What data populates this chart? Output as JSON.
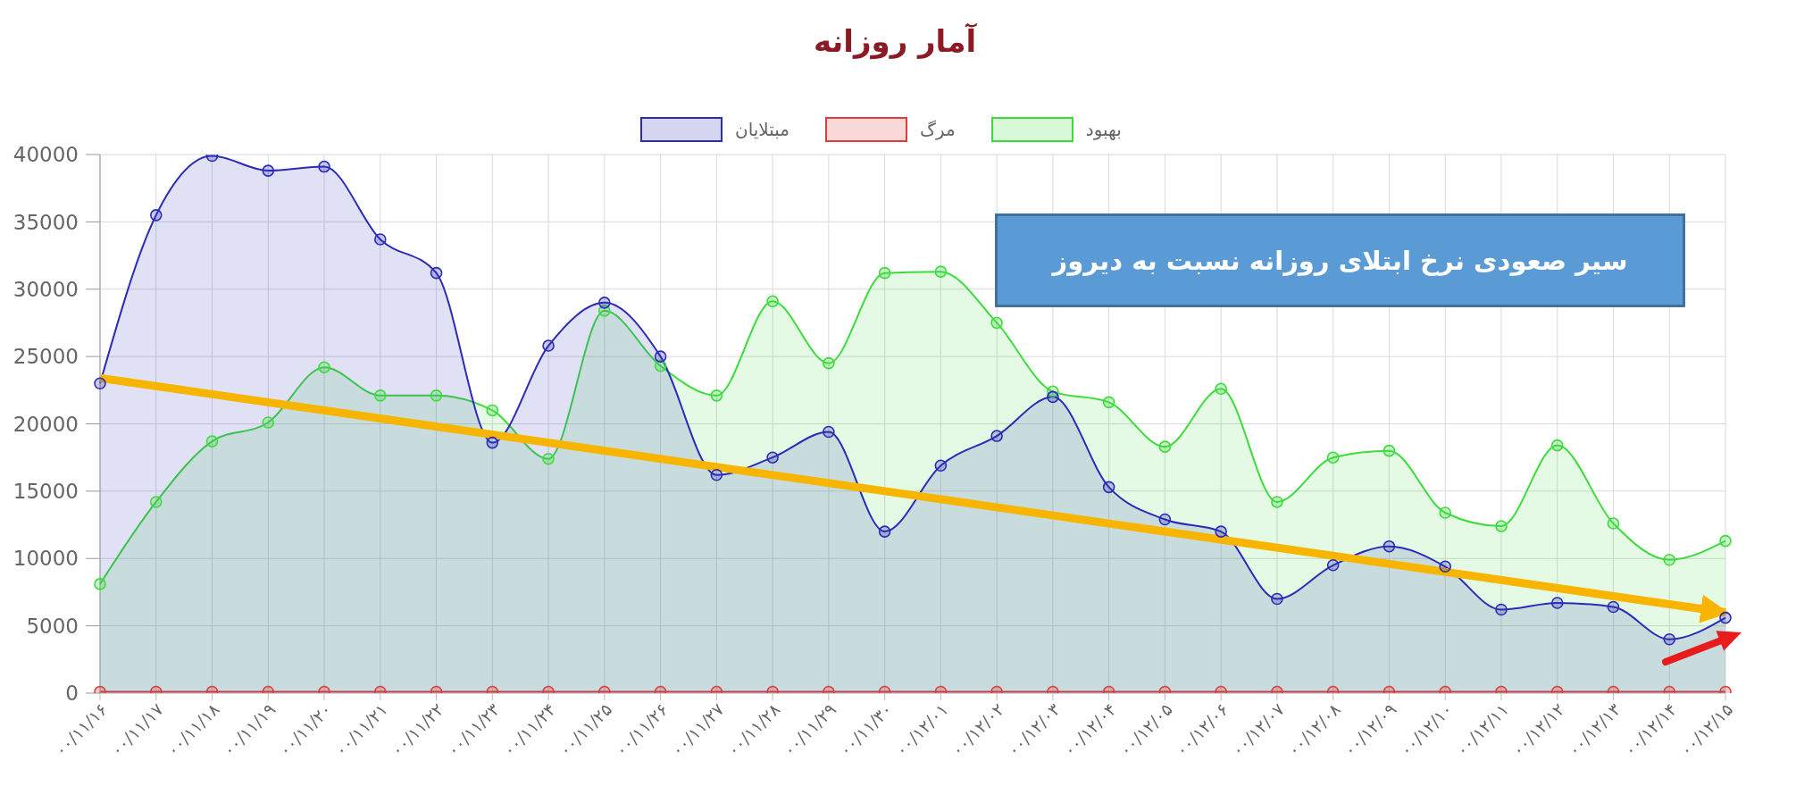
{
  "chart_data": {
    "type": "area",
    "title": "آمار روزانه",
    "categories": [
      "۰۰/۱۱/۱۶",
      "۰۰/۱۱/۱۷",
      "۰۰/۱۱/۱۸",
      "۰۰/۱۱/۱۹",
      "۰۰/۱۱/۲۰",
      "۰۰/۱۱/۲۱",
      "۰۰/۱۱/۲۲",
      "۰۰/۱۱/۲۳",
      "۰۰/۱۱/۲۴",
      "۰۰/۱۱/۲۵",
      "۰۰/۱۱/۲۶",
      "۰۰/۱۱/۲۷",
      "۰۰/۱۱/۲۸",
      "۰۰/۱۱/۲۹",
      "۰۰/۱۱/۳۰",
      "۰۰/۱۲/۰۱",
      "۰۰/۱۲/۰۲",
      "۰۰/۱۲/۰۳",
      "۰۰/۱۲/۰۴",
      "۰۰/۱۲/۰۵",
      "۰۰/۱۲/۰۶",
      "۰۰/۱۲/۰۷",
      "۰۰/۱۲/۰۸",
      "۰۰/۱۲/۰۹",
      "۰۰/۱۲/۱۰",
      "۰۰/۱۲/۱۱",
      "۰۰/۱۲/۱۲",
      "۰۰/۱۲/۱۳",
      "۰۰/۱۲/۱۴",
      "۰۰/۱۲/۱۵"
    ],
    "series": [
      {
        "name": "مبتلایان",
        "color": "#2b2bb8",
        "values": [
          23000,
          35500,
          39900,
          38800,
          39100,
          33700,
          31200,
          18600,
          25800,
          29000,
          25000,
          16200,
          17500,
          19400,
          12000,
          16900,
          19100,
          22000,
          15300,
          12900,
          12000,
          7000,
          9500,
          10900,
          9400,
          6200,
          6700,
          6400,
          4000,
          5600
        ]
      },
      {
        "name": "مرگ",
        "color": "#e03c3c",
        "values": [
          100,
          100,
          100,
          100,
          100,
          100,
          100,
          100,
          100,
          100,
          100,
          100,
          100,
          100,
          100,
          100,
          100,
          100,
          100,
          100,
          100,
          100,
          100,
          100,
          100,
          100,
          100,
          100,
          100,
          100
        ]
      },
      {
        "name": "بهبود",
        "color": "#3ddc3d",
        "values": [
          8100,
          14200,
          18700,
          20100,
          24200,
          22100,
          22100,
          21000,
          17400,
          28400,
          24300,
          22100,
          29100,
          24500,
          31200,
          31300,
          27500,
          22400,
          21600,
          18300,
          22600,
          14200,
          17500,
          18000,
          13400,
          12400,
          18400,
          12600,
          9900,
          11300
        ]
      },
      {
        "type": "line",
        "color": "#f7b500",
        "marker": "none",
        "values": [
          23400,
          null,
          null,
          null,
          null,
          null,
          null,
          null,
          null,
          null,
          null,
          null,
          null,
          null,
          null,
          null,
          null,
          null,
          null,
          null,
          null,
          null,
          null,
          null,
          null,
          null,
          null,
          null,
          null,
          6000
        ]
      }
    ],
    "ylim": [
      0,
      40000
    ],
    "yticks": [
      0,
      5000,
      10000,
      15000,
      20000,
      25000,
      30000,
      35000,
      40000
    ],
    "grid": true,
    "legend": "top",
    "marker": "circle",
    "annotations": [
      "سیر صعودی نرخ ابتلای روزانه نسبت به دیروز"
    ]
  }
}
